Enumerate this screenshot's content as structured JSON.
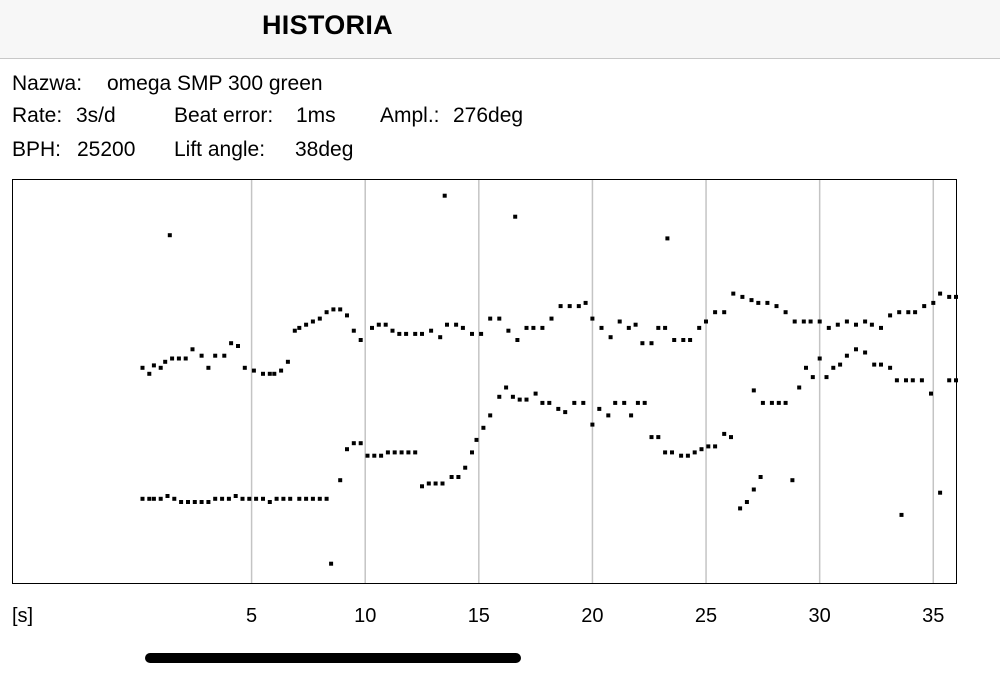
{
  "header": {
    "title": "HISTORIA"
  },
  "info": {
    "name_label": "Nazwa:",
    "name_value": "omega SMP 300 green",
    "rate_label": "Rate:",
    "rate_value": "3s/d",
    "beat_error_label": "Beat error:",
    "beat_error_value": "1ms",
    "amplitude_label": "Ampl.:",
    "amplitude_value": "276deg",
    "bph_label": "BPH:",
    "bph_value": "25200",
    "lift_angle_label": "Lift angle:",
    "lift_angle_value": "38deg"
  },
  "chart_data": {
    "type": "scatter",
    "title": "",
    "xlabel": "[s]",
    "ylabel": "",
    "xlim": [
      -5.5,
      36
    ],
    "ylim": [
      0,
      100
    ],
    "x_ticks": [
      5,
      10,
      15,
      20,
      25,
      30,
      35
    ],
    "grid": "vertical",
    "series": [
      {
        "name": "tick",
        "points": [
          [
            0.2,
            53.4
          ],
          [
            0.5,
            51.9
          ],
          [
            0.7,
            54.0
          ],
          [
            1.0,
            53.4
          ],
          [
            1.2,
            54.9
          ],
          [
            1.5,
            55.7
          ],
          [
            1.8,
            55.7
          ],
          [
            2.1,
            55.7
          ],
          [
            2.4,
            58.0
          ],
          [
            2.8,
            56.4
          ],
          [
            3.1,
            53.4
          ],
          [
            3.4,
            56.4
          ],
          [
            3.8,
            56.4
          ],
          [
            4.1,
            59.5
          ],
          [
            4.4,
            58.8
          ],
          [
            4.7,
            53.4
          ],
          [
            5.1,
            52.7
          ],
          [
            5.5,
            51.9
          ],
          [
            5.8,
            51.9
          ],
          [
            6.0,
            51.9
          ],
          [
            6.3,
            52.7
          ],
          [
            6.6,
            54.9
          ],
          [
            6.9,
            62.6
          ],
          [
            7.1,
            63.3
          ],
          [
            7.4,
            64.1
          ],
          [
            7.7,
            64.9
          ],
          [
            8.0,
            65.6
          ],
          [
            8.3,
            67.2
          ],
          [
            8.6,
            67.9
          ],
          [
            8.9,
            67.9
          ],
          [
            9.2,
            66.4
          ],
          [
            9.5,
            62.6
          ],
          [
            9.8,
            60.3
          ],
          [
            10.3,
            63.3
          ],
          [
            10.6,
            64.1
          ],
          [
            10.9,
            64.1
          ],
          [
            11.2,
            62.6
          ],
          [
            11.5,
            61.8
          ],
          [
            11.8,
            61.8
          ],
          [
            12.2,
            61.8
          ],
          [
            12.5,
            61.8
          ],
          [
            12.9,
            62.6
          ],
          [
            13.3,
            61.0
          ],
          [
            13.6,
            64.1
          ],
          [
            14.0,
            64.1
          ],
          [
            14.3,
            63.3
          ],
          [
            14.7,
            61.8
          ],
          [
            15.1,
            61.8
          ],
          [
            15.5,
            65.6
          ],
          [
            15.9,
            65.6
          ],
          [
            16.3,
            62.6
          ],
          [
            16.7,
            60.3
          ],
          [
            17.1,
            63.3
          ],
          [
            17.4,
            63.3
          ],
          [
            17.8,
            63.3
          ],
          [
            18.2,
            65.6
          ],
          [
            18.6,
            68.7
          ],
          [
            19.0,
            68.7
          ],
          [
            19.4,
            68.7
          ],
          [
            19.7,
            69.5
          ],
          [
            20.0,
            65.6
          ],
          [
            20.4,
            63.3
          ],
          [
            20.8,
            61.0
          ],
          [
            21.2,
            64.9
          ],
          [
            21.6,
            63.3
          ],
          [
            21.9,
            64.1
          ],
          [
            22.2,
            59.5
          ],
          [
            22.6,
            59.5
          ],
          [
            22.9,
            63.3
          ],
          [
            23.2,
            63.3
          ],
          [
            23.6,
            60.3
          ],
          [
            24.0,
            60.3
          ],
          [
            24.3,
            60.3
          ],
          [
            24.7,
            63.3
          ],
          [
            25.0,
            64.9
          ],
          [
            25.4,
            67.2
          ],
          [
            25.8,
            67.2
          ],
          [
            26.2,
            71.8
          ],
          [
            26.6,
            71.0
          ],
          [
            27.0,
            70.2
          ],
          [
            27.3,
            69.5
          ],
          [
            27.7,
            69.5
          ],
          [
            28.1,
            68.7
          ],
          [
            28.5,
            67.2
          ],
          [
            28.9,
            64.9
          ],
          [
            29.3,
            64.9
          ],
          [
            29.6,
            64.9
          ],
          [
            30.0,
            64.9
          ],
          [
            30.4,
            63.3
          ],
          [
            30.8,
            64.1
          ],
          [
            31.2,
            64.9
          ],
          [
            31.6,
            64.1
          ],
          [
            32.0,
            64.9
          ],
          [
            32.3,
            64.1
          ],
          [
            32.7,
            63.3
          ],
          [
            33.1,
            66.4
          ],
          [
            33.5,
            67.2
          ],
          [
            33.9,
            67.2
          ],
          [
            34.2,
            67.2
          ],
          [
            34.6,
            68.7
          ],
          [
            35.0,
            69.5
          ],
          [
            35.3,
            71.8
          ],
          [
            35.7,
            71.0
          ],
          [
            36.0,
            71.0
          ]
        ]
      },
      {
        "name": "tock",
        "points": [
          [
            0.2,
            20.9
          ],
          [
            0.5,
            20.9
          ],
          [
            0.7,
            20.9
          ],
          [
            1.0,
            20.9
          ],
          [
            1.3,
            21.6
          ],
          [
            1.6,
            20.9
          ],
          [
            1.9,
            20.1
          ],
          [
            2.2,
            20.1
          ],
          [
            2.5,
            20.1
          ],
          [
            2.8,
            20.1
          ],
          [
            3.1,
            20.1
          ],
          [
            3.4,
            20.9
          ],
          [
            3.7,
            20.9
          ],
          [
            4.0,
            20.9
          ],
          [
            4.3,
            21.6
          ],
          [
            4.6,
            20.9
          ],
          [
            4.9,
            20.9
          ],
          [
            5.2,
            20.9
          ],
          [
            5.5,
            20.9
          ],
          [
            5.8,
            20.1
          ],
          [
            6.1,
            20.9
          ],
          [
            6.4,
            20.9
          ],
          [
            6.7,
            20.9
          ],
          [
            7.1,
            20.9
          ],
          [
            7.4,
            20.9
          ],
          [
            7.7,
            20.9
          ],
          [
            8.0,
            20.9
          ],
          [
            8.3,
            20.9
          ],
          [
            8.5,
            4.8
          ],
          [
            8.9,
            25.5
          ],
          [
            9.2,
            33.2
          ],
          [
            9.5,
            34.7
          ],
          [
            9.8,
            34.7
          ],
          [
            10.1,
            31.6
          ],
          [
            10.4,
            31.6
          ],
          [
            10.7,
            31.6
          ],
          [
            11.0,
            32.4
          ],
          [
            11.3,
            32.4
          ],
          [
            11.6,
            32.4
          ],
          [
            11.9,
            32.4
          ],
          [
            12.2,
            32.4
          ],
          [
            12.5,
            24.0
          ],
          [
            12.8,
            24.7
          ],
          [
            13.1,
            24.7
          ],
          [
            13.4,
            24.7
          ],
          [
            13.8,
            26.3
          ],
          [
            14.1,
            26.3
          ],
          [
            14.4,
            28.6
          ],
          [
            14.7,
            32.4
          ],
          [
            14.9,
            35.5
          ],
          [
            15.2,
            38.5
          ],
          [
            15.5,
            41.6
          ],
          [
            15.9,
            46.2
          ],
          [
            16.2,
            48.5
          ],
          [
            16.5,
            46.2
          ],
          [
            16.8,
            45.5
          ],
          [
            17.1,
            45.5
          ],
          [
            17.5,
            47.0
          ],
          [
            17.8,
            44.7
          ],
          [
            18.1,
            44.7
          ],
          [
            18.5,
            43.2
          ],
          [
            18.8,
            42.4
          ],
          [
            19.2,
            44.7
          ],
          [
            19.6,
            44.7
          ],
          [
            20.0,
            39.3
          ],
          [
            20.3,
            43.2
          ],
          [
            20.7,
            41.6
          ],
          [
            21.0,
            44.7
          ],
          [
            21.4,
            44.7
          ],
          [
            21.7,
            41.6
          ],
          [
            22.0,
            44.7
          ],
          [
            22.3,
            44.7
          ],
          [
            22.6,
            36.2
          ],
          [
            22.9,
            36.2
          ],
          [
            23.2,
            32.4
          ],
          [
            23.5,
            32.4
          ],
          [
            23.9,
            31.6
          ],
          [
            24.2,
            31.6
          ],
          [
            24.5,
            32.4
          ],
          [
            24.8,
            33.2
          ],
          [
            25.1,
            33.9
          ],
          [
            25.4,
            33.9
          ],
          [
            25.8,
            37.0
          ],
          [
            26.1,
            36.2
          ],
          [
            26.5,
            18.5
          ],
          [
            26.8,
            20.1
          ],
          [
            27.1,
            23.2
          ],
          [
            27.4,
            26.3
          ],
          [
            27.1,
            47.8
          ],
          [
            27.5,
            44.7
          ],
          [
            27.9,
            44.7
          ],
          [
            28.2,
            44.7
          ],
          [
            28.5,
            44.7
          ],
          [
            28.8,
            25.5
          ],
          [
            29.1,
            48.5
          ],
          [
            29.4,
            53.4
          ],
          [
            29.7,
            51.1
          ],
          [
            30.0,
            55.7
          ],
          [
            30.3,
            51.1
          ],
          [
            30.6,
            53.4
          ],
          [
            30.9,
            54.2
          ],
          [
            31.2,
            56.4
          ],
          [
            31.6,
            58.0
          ],
          [
            32.0,
            57.2
          ],
          [
            32.4,
            54.2
          ],
          [
            32.7,
            54.2
          ],
          [
            33.1,
            53.4
          ],
          [
            33.4,
            50.3
          ],
          [
            33.8,
            50.3
          ],
          [
            34.1,
            50.3
          ],
          [
            34.5,
            50.3
          ],
          [
            34.9,
            47.0
          ],
          [
            35.3,
            22.4
          ],
          [
            35.7,
            50.3
          ],
          [
            36.0,
            50.3
          ]
        ]
      },
      {
        "name": "outliers",
        "points": [
          [
            1.4,
            86.3
          ],
          [
            13.5,
            96.1
          ],
          [
            16.6,
            90.9
          ],
          [
            23.3,
            85.5
          ],
          [
            33.6,
            16.9
          ]
        ]
      }
    ]
  }
}
